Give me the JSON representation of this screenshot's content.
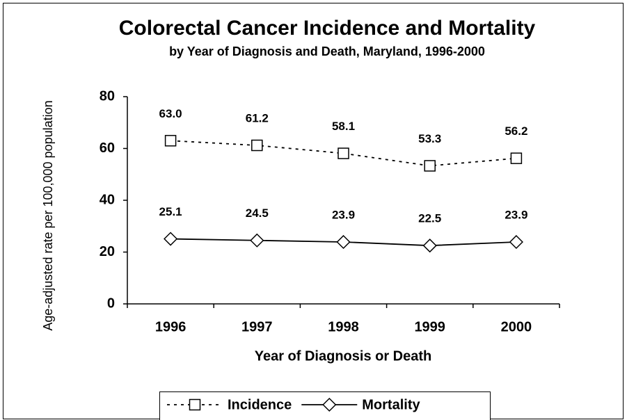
{
  "chart_data": {
    "type": "line",
    "title": "Colorectal Cancer Incidence and Mortality",
    "subtitle": "by Year of Diagnosis and Death, Maryland, 1996-2000",
    "x_label": "Year of Diagnosis or Death",
    "y_label": "Age-adjusted rate per 100,000 population",
    "categories": [
      "1996",
      "1997",
      "1998",
      "1999",
      "2000"
    ],
    "series": [
      {
        "name": "Incidence",
        "color": "#000000",
        "marker": "square",
        "dash": "dashed",
        "values": [
          63.0,
          61.2,
          58.1,
          53.3,
          56.2
        ],
        "value_labels": [
          "63.0",
          "61.2",
          "58.1",
          "53.3",
          "56.2"
        ]
      },
      {
        "name": "Mortality",
        "color": "#000000",
        "marker": "diamond",
        "dash": "solid",
        "values": [
          25.1,
          24.5,
          23.9,
          22.5,
          23.9
        ],
        "value_labels": [
          "25.1",
          "24.5",
          "23.9",
          "22.5",
          "23.9"
        ]
      }
    ],
    "ylim": [
      0,
      80
    ],
    "yticks": [
      0,
      20,
      40,
      60,
      80
    ],
    "grid": false,
    "legend": "bottom"
  }
}
